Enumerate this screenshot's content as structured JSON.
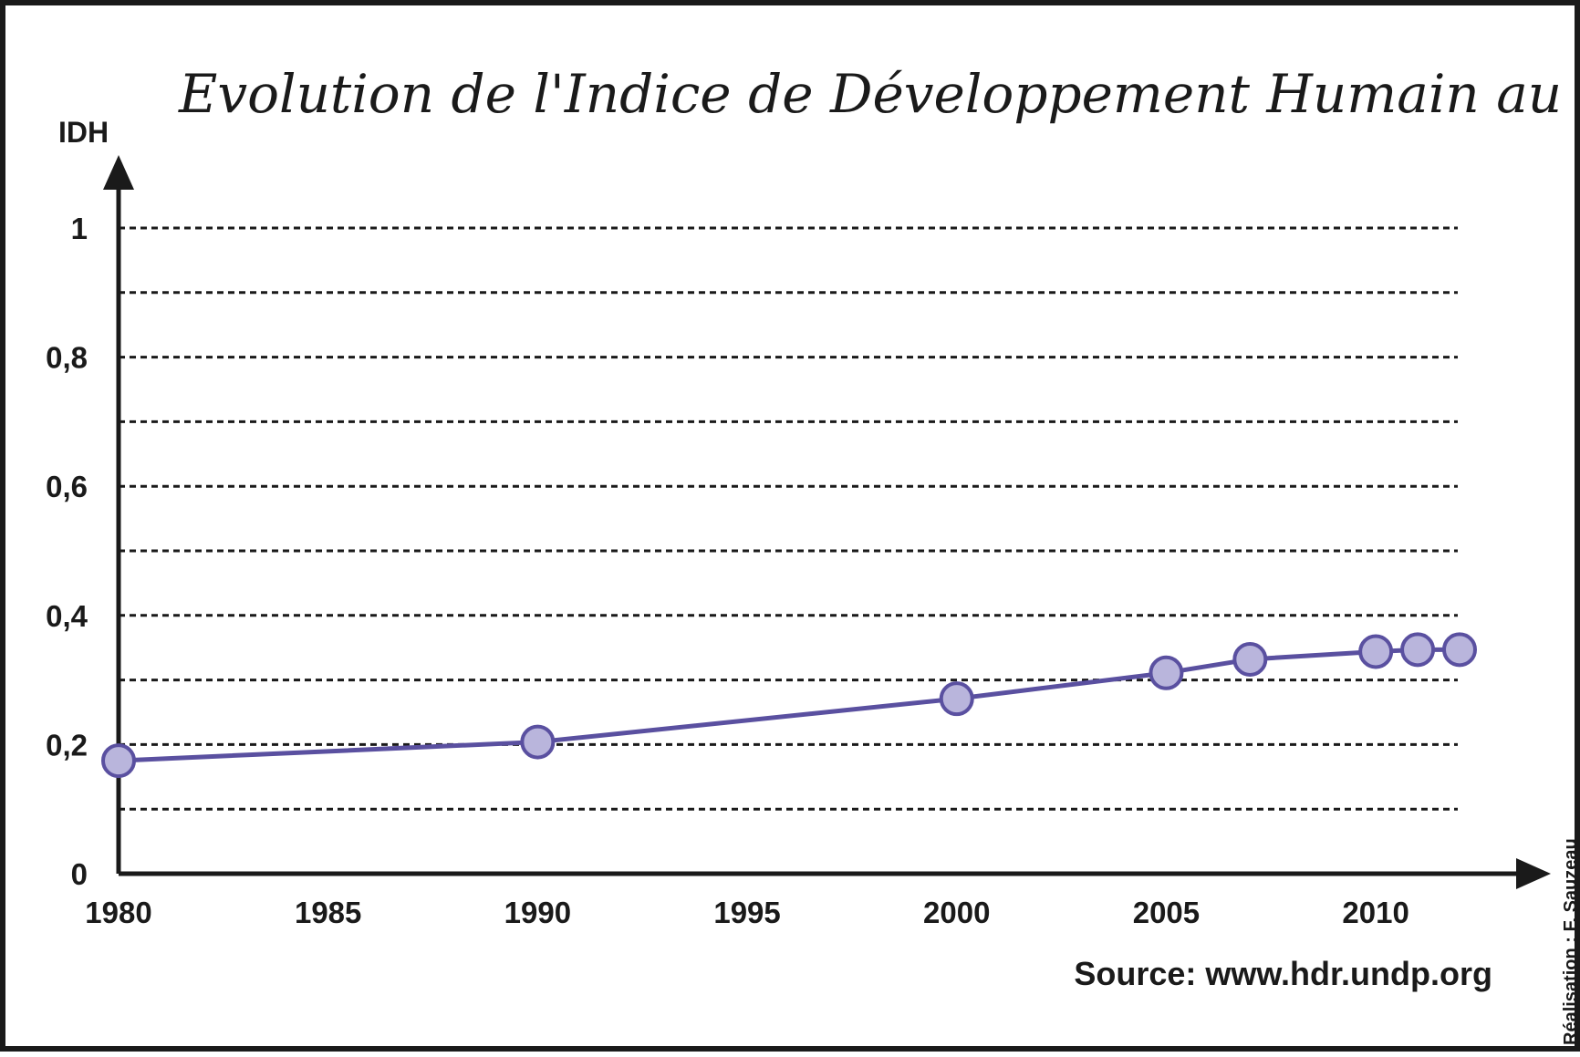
{
  "chart_data": {
    "type": "line",
    "title": "Evolution de l'Indice de Développement Humain au Mali",
    "ylabel": "IDH",
    "xlabel": "",
    "xlim": [
      1980,
      2012
    ],
    "ylim": [
      0,
      1
    ],
    "x_ticks": [
      "1980",
      "1985",
      "1990",
      "1995",
      "2000",
      "2005",
      "2010"
    ],
    "y_ticks": [
      "0",
      "0,2",
      "0,4",
      "0,6",
      "0,8",
      "1"
    ],
    "grid": true,
    "series": [
      {
        "x": [
          1980,
          1990,
          2000,
          2005,
          2007,
          2010,
          2011,
          2012
        ],
        "y": [
          0.175,
          0.204,
          0.271,
          0.311,
          0.332,
          0.344,
          0.347,
          0.347
        ]
      }
    ],
    "source": "Source: www.hdr.undp.org",
    "credit": "Réalisation : F. Sauzeau"
  },
  "colors": {
    "line": "#5a50a0",
    "marker_fill": "#b9b5dc",
    "marker_stroke": "#5a50a0",
    "axis": "#1a1a1a"
  }
}
